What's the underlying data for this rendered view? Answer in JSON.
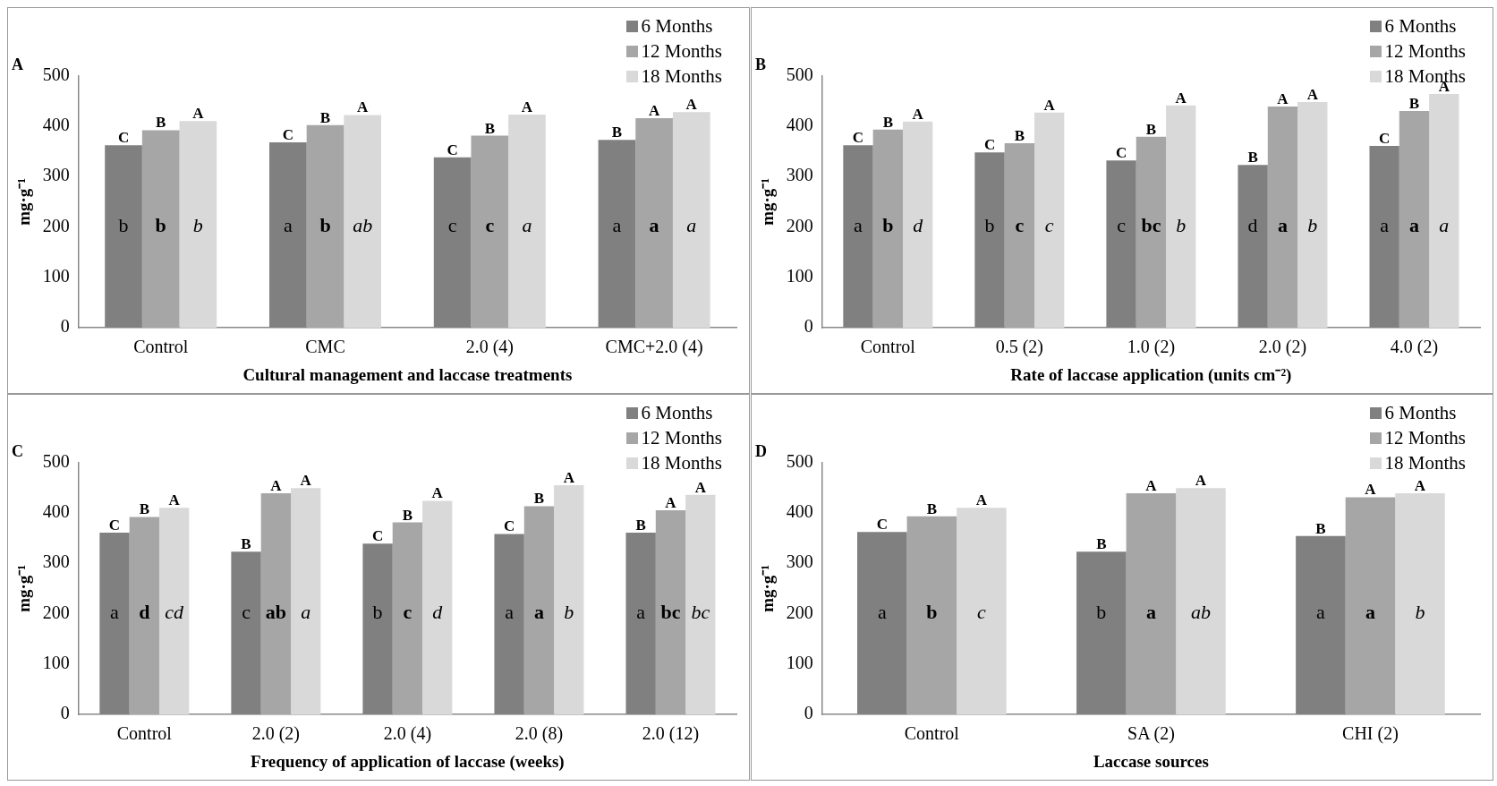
{
  "chart_data": [
    {
      "type": "bar",
      "title": "A",
      "xlabel": "Cultural management and laccase treatments",
      "ylabel": "mg·g⁻¹",
      "legend": "top right",
      "ylim": [
        0,
        500
      ],
      "yticks": [
        0,
        100,
        200,
        300,
        400,
        500
      ],
      "categories": [
        "Control",
        "CMC",
        "2.0 (4)",
        "CMC+2.0 (4)"
      ],
      "series": [
        {
          "name": "6 Months",
          "color": "#808080",
          "values": [
            362,
            368,
            338,
            373
          ],
          "value_labels": [
            "C",
            "C",
            "C",
            "B"
          ]
        },
        {
          "name": "12 Months",
          "color": "#a6a6a6",
          "values": [
            392,
            402,
            381,
            416
          ],
          "value_labels": [
            "B",
            "B",
            "B",
            "A"
          ]
        },
        {
          "name": "18 Months",
          "color": "#d9d9d9",
          "values": [
            410,
            422,
            423,
            428
          ],
          "value_labels": [
            "A",
            "A",
            "A",
            "A"
          ]
        }
      ],
      "annotations": [
        "b",
        "b",
        "b",
        "a",
        "b",
        "ab",
        "c",
        "c",
        "a",
        "a",
        "a",
        "a"
      ]
    },
    {
      "type": "bar",
      "title": "B",
      "xlabel": "Rate of laccase application (units cm⁻²)",
      "ylabel": "mg·g⁻¹",
      "legend": "top right",
      "ylim": [
        0,
        500
      ],
      "yticks": [
        0,
        100,
        200,
        300,
        400,
        500
      ],
      "categories": [
        "Control",
        "0.5 (2)",
        "1.0 (2)",
        "2.0 (2)",
        "4.0 (2)"
      ],
      "series": [
        {
          "name": "6 Months",
          "color": "#808080",
          "values": [
            362,
            348,
            332,
            323,
            361
          ],
          "value_labels": [
            "C",
            "C",
            "C",
            "B",
            "C"
          ]
        },
        {
          "name": "12 Months",
          "color": "#a6a6a6",
          "values": [
            393,
            366,
            379,
            439,
            430
          ],
          "value_labels": [
            "B",
            "B",
            "B",
            "A",
            "B"
          ]
        },
        {
          "name": "18 Months",
          "color": "#d9d9d9",
          "values": [
            409,
            427,
            441,
            448,
            464
          ],
          "value_labels": [
            "A",
            "A",
            "A",
            "A",
            "A"
          ]
        }
      ],
      "annotations": [
        "a",
        "b",
        "d",
        "b",
        "c",
        "c",
        "c",
        "bc",
        "b",
        "d",
        "a",
        "b",
        "a",
        "a",
        "a"
      ]
    },
    {
      "type": "bar",
      "title": "C",
      "xlabel": "Frequency of application of laccase (weeks)",
      "ylabel": "mg·g⁻¹",
      "legend": "top right",
      "ylim": [
        0,
        500
      ],
      "yticks": [
        0,
        100,
        200,
        300,
        400,
        500
      ],
      "categories": [
        "Control",
        "2.0 (2)",
        "2.0 (4)",
        "2.0 (8)",
        "2.0 (12)"
      ],
      "series": [
        {
          "name": "6 Months",
          "color": "#808080",
          "values": [
            361,
            323,
            339,
            358,
            361
          ],
          "value_labels": [
            "C",
            "B",
            "C",
            "C",
            "B"
          ]
        },
        {
          "name": "12 Months",
          "color": "#a6a6a6",
          "values": [
            392,
            439,
            381,
            413,
            405
          ],
          "value_labels": [
            "B",
            "A",
            "B",
            "B",
            "A"
          ]
        },
        {
          "name": "18 Months",
          "color": "#d9d9d9",
          "values": [
            410,
            449,
            424,
            455,
            436
          ],
          "value_labels": [
            "A",
            "A",
            "A",
            "A",
            "A"
          ]
        }
      ],
      "annotations": [
        "a",
        "d",
        "cd",
        "c",
        "ab",
        "a",
        "b",
        "c",
        "d",
        "a",
        "a",
        "b",
        "a",
        "bc",
        "bc"
      ]
    },
    {
      "type": "bar",
      "title": "D",
      "xlabel": "Laccase sources",
      "ylabel": "mg·g⁻¹",
      "legend": "top right",
      "ylim": [
        0,
        500
      ],
      "yticks": [
        0,
        100,
        200,
        300,
        400,
        500
      ],
      "categories": [
        "Control",
        "SA (2)",
        "CHI (2)"
      ],
      "series": [
        {
          "name": "6 Months",
          "color": "#808080",
          "values": [
            362,
            323,
            354
          ],
          "value_labels": [
            "C",
            "B",
            "B"
          ]
        },
        {
          "name": "12 Months",
          "color": "#a6a6a6",
          "values": [
            393,
            439,
            431
          ],
          "value_labels": [
            "B",
            "A",
            "A"
          ]
        },
        {
          "name": "18 Months",
          "color": "#d9d9d9",
          "values": [
            410,
            449,
            439
          ],
          "value_labels": [
            "A",
            "A",
            "A"
          ]
        }
      ],
      "annotations": [
        "a",
        "b",
        "c",
        "b",
        "a",
        "ab",
        "a",
        "a",
        "b"
      ]
    }
  ]
}
